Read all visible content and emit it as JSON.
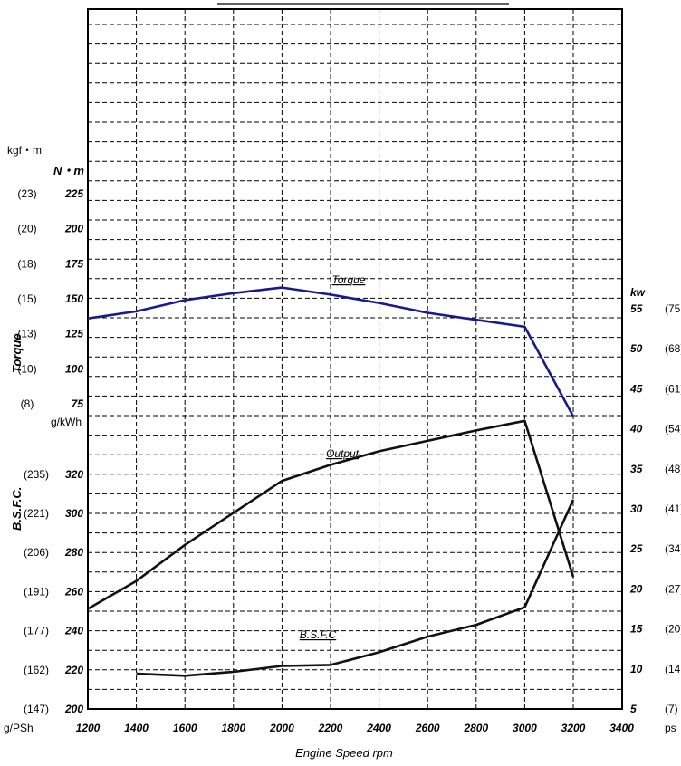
{
  "chart_data": {
    "type": "line",
    "xlabel": "Engine Speed  rpm",
    "x_ticks": [
      "1200",
      "1400",
      "1600",
      "1800",
      "2000",
      "2200",
      "2400",
      "2600",
      "2800",
      "3000",
      "3200",
      "3400"
    ],
    "xlim": [
      1200,
      3400
    ],
    "torque_axis": {
      "unit_nm": "N・m",
      "unit_kgfm": "kgf・m",
      "title": "Torque",
      "ticks": [
        "75",
        "100",
        "125",
        "150",
        "175",
        "200",
        "225"
      ],
      "ticks_kgfm": [
        "(8)",
        "(10)",
        "(13)",
        "(15)",
        "(18)",
        "(20)",
        "(23)"
      ],
      "ylim": [
        75,
        225
      ]
    },
    "bsfc_axis": {
      "unit": "g/kWh",
      "unit_alt": "g/PSh",
      "title": "B.S.F.C.",
      "ticks": [
        "200",
        "220",
        "240",
        "260",
        "280",
        "300",
        "320"
      ],
      "ticks_alt": [
        "(147)",
        "(162)",
        "(177)",
        "(191)",
        "(206)",
        "(221)",
        "(235)"
      ],
      "ylim": [
        200,
        320
      ]
    },
    "power_axis": {
      "unit": "kw",
      "unit_alt": "ps",
      "ticks": [
        "5",
        "10",
        "15",
        "20",
        "25",
        "30",
        "35",
        "40",
        "45",
        "50",
        "55"
      ],
      "ticks_alt": [
        "(7)",
        "(14)",
        "(20)",
        "(27)",
        "(34)",
        "(41)",
        "(48)",
        "(54)",
        "(61)",
        "(68)",
        "(75"
      ],
      "ylim": [
        5,
        55
      ]
    },
    "series": [
      {
        "name": "Torque",
        "axis": "torque",
        "color": "#1a1a8c",
        "x": [
          1200,
          1400,
          1600,
          1800,
          2000,
          2200,
          2400,
          2600,
          2800,
          3000,
          3200
        ],
        "values": [
          136,
          141,
          149,
          154,
          158,
          153,
          147,
          140,
          135,
          130,
          66
        ]
      },
      {
        "name": "Output",
        "axis": "power",
        "color": "#111111",
        "x": [
          1200,
          1400,
          1600,
          1800,
          2000,
          2200,
          2400,
          2600,
          2800,
          3000,
          3200
        ],
        "values": [
          17.5,
          21,
          25.5,
          29.5,
          33.5,
          35.5,
          37.2,
          38.5,
          39.8,
          41,
          21.5
        ]
      },
      {
        "name": "B.S.F.C",
        "axis": "bsfc",
        "color": "#111111",
        "x": [
          1400,
          1600,
          1800,
          2000,
          2200,
          2400,
          2600,
          2800,
          3000,
          3200
        ],
        "values": [
          218,
          217,
          219,
          222,
          222.5,
          229,
          237,
          243,
          252,
          307
        ]
      }
    ]
  }
}
